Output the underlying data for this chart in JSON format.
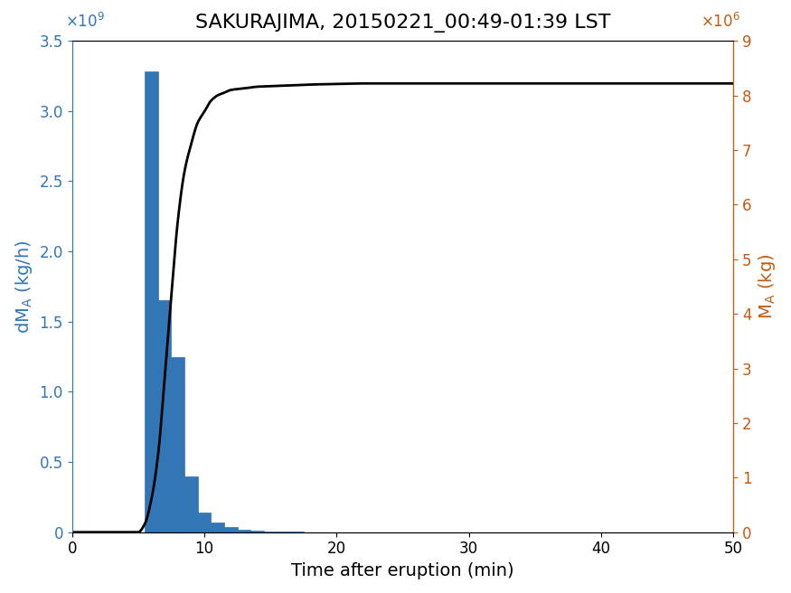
{
  "title": "SAKURAJIMA, 20150221_00:49-01:39 LST",
  "xlabel": "Time after eruption (min)",
  "ylabel_left": "dM_A (kg/h)",
  "ylabel_right": "M_A (kg)",
  "bar_centers": [
    6,
    7,
    8,
    9,
    10,
    11,
    12,
    13,
    14,
    15,
    16,
    17,
    18
  ],
  "bar_heights": [
    3280000000.0,
    1650000000.0,
    1250000000.0,
    400000000.0,
    140000000.0,
    70000000.0,
    35000000.0,
    15000000.0,
    8000000.0,
    5000000.0,
    3000000.0,
    2000000.0,
    1000000.0
  ],
  "bar_width": 1.0,
  "bar_color": "#3276b5",
  "bar_edgecolor": "#3276b5",
  "xlim": [
    0,
    50
  ],
  "ylim_left": [
    0,
    3500000000.0
  ],
  "ylim_right": [
    0,
    9000000.0
  ],
  "xticks": [
    0,
    10,
    20,
    30,
    40,
    50
  ],
  "yticks_left": [
    0,
    500000000.0,
    1000000000.0,
    1500000000.0,
    2000000000.0,
    2500000000.0,
    3000000000.0,
    3500000000.0
  ],
  "yticks_right": [
    0,
    1000000.0,
    2000000.0,
    3000000.0,
    4000000.0,
    5000000.0,
    6000000.0,
    7000000.0,
    8000000.0,
    9000000.0
  ],
  "line_color": "black",
  "line_width": 2.0,
  "title_fontsize": 16,
  "label_fontsize": 14,
  "tick_fontsize": 12,
  "left_label_color": "#3276b5",
  "right_label_color": "#c55a11",
  "background_color": "white",
  "cum_t": [
    0,
    5,
    5.5,
    6,
    6.5,
    7,
    7.5,
    8,
    8.5,
    9,
    9.5,
    10,
    10.5,
    11,
    11.5,
    12,
    13,
    14,
    15,
    16,
    17,
    18,
    20,
    22,
    25,
    30,
    35,
    40,
    45,
    50
  ],
  "cum_v": [
    0,
    0,
    150000.0,
    600000.0,
    1400000.0,
    2800000.0,
    4300000.0,
    5700000.0,
    6600000.0,
    7100000.0,
    7500000.0,
    7700000.0,
    7900000.0,
    8000000.0,
    8050000.0,
    8100000.0,
    8130000.0,
    8160000.0,
    8170000.0,
    8180000.0,
    8190000.0,
    8200000.0,
    8210000.0,
    8220000.0,
    8220000.0,
    8220000.0,
    8220000.0,
    8220000.0,
    8220000.0,
    8220000.0
  ]
}
